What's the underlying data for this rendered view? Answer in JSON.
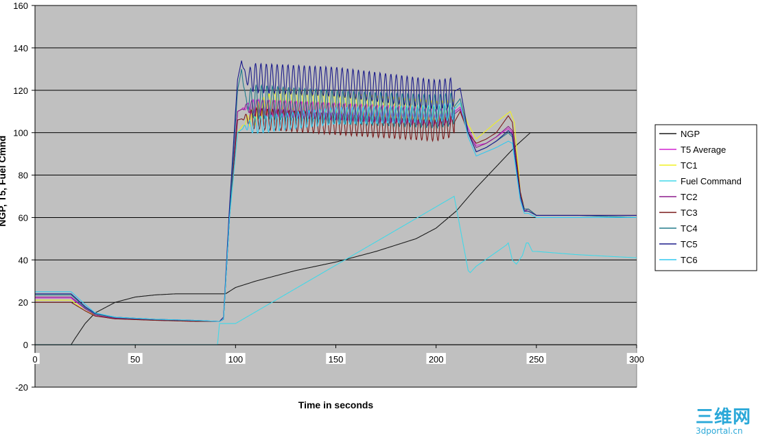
{
  "chart_data": {
    "type": "line",
    "title": "",
    "xlabel": "Time in seconds",
    "ylabel": "NGP, T5, Fuel Cmnd",
    "xlim": [
      0,
      300
    ],
    "ylim": [
      -20,
      160
    ],
    "x_ticks": [
      0,
      50,
      100,
      150,
      200,
      250,
      300
    ],
    "y_ticks": [
      -20,
      0,
      20,
      40,
      60,
      80,
      100,
      120,
      140,
      160
    ],
    "grid": "horizontal",
    "legend_position": "right",
    "plot_background": "#c0c0c0",
    "series": [
      {
        "name": "NGP",
        "color": "#1a1a1a",
        "x": [
          0,
          18,
          20,
          25,
          30,
          40,
          50,
          60,
          70,
          80,
          90,
          95,
          100,
          110,
          130,
          150,
          170,
          190,
          200,
          210,
          220,
          230,
          240,
          247,
          250,
          270,
          300
        ],
        "y": [
          0,
          0,
          3,
          10,
          15,
          20,
          22.5,
          23.5,
          24,
          24,
          24,
          24,
          27,
          30,
          35,
          39,
          44,
          50,
          55,
          63,
          74,
          84,
          94,
          100,
          100,
          100,
          100
        ]
      },
      {
        "name": "T5 Average",
        "color": "#d020d0",
        "x": [
          0,
          18,
          25,
          30,
          40,
          60,
          80,
          92,
          94,
          97,
          101,
          105,
          150,
          200,
          208,
          212,
          216,
          220,
          225,
          230,
          236,
          238,
          242,
          244,
          246,
          250,
          270,
          300
        ],
        "y": [
          22,
          22,
          17,
          14,
          12.5,
          11.7,
          11.2,
          11,
          12,
          60,
          110,
          112,
          110,
          108,
          109,
          112,
          102,
          94,
          95,
          98,
          102,
          100,
          70,
          63,
          64,
          61,
          61,
          61
        ],
        "osc_amp": 4,
        "osc_start": 103,
        "osc_end": 209
      },
      {
        "name": "TC1",
        "color": "#f0f020",
        "x": [
          0,
          18,
          25,
          30,
          40,
          60,
          80,
          92,
          94,
          97,
          101,
          105,
          120,
          150,
          200,
          208,
          212,
          216,
          220,
          225,
          230,
          237,
          239,
          242,
          244,
          246,
          250,
          270,
          300
        ],
        "y": [
          21,
          21,
          16,
          14,
          12.8,
          11.8,
          11.3,
          11,
          12,
          60,
          100,
          105,
          116,
          114,
          110,
          110,
          114,
          104,
          97,
          101,
          105,
          110,
          105,
          72,
          64,
          64,
          61,
          61,
          61
        ],
        "osc_amp": 5,
        "osc_start": 103,
        "osc_end": 209
      },
      {
        "name": "Fuel Command",
        "color": "#40d8e8",
        "x": [
          0,
          91,
          92,
          95,
          100,
          209,
          212,
          215,
          216,
          217,
          220,
          235,
          236,
          238,
          240,
          243,
          245,
          246,
          248,
          250,
          270,
          300
        ],
        "y": [
          0,
          0,
          10,
          10,
          10,
          70,
          55,
          40,
          35,
          34,
          37,
          47,
          48,
          40,
          38,
          42,
          48,
          48,
          44,
          44,
          42.5,
          41
        ]
      },
      {
        "name": "TC2",
        "color": "#8b1a8b",
        "x": [
          0,
          18,
          25,
          30,
          40,
          60,
          80,
          92,
          94,
          97,
          101,
          105,
          150,
          200,
          208,
          212,
          216,
          220,
          225,
          230,
          236,
          238,
          242,
          244,
          246,
          250,
          270,
          300
        ],
        "y": [
          22.5,
          22.5,
          17,
          14,
          12.5,
          11.7,
          11.2,
          11,
          12,
          60,
          110,
          112,
          110,
          107,
          108,
          111,
          100,
          93,
          95,
          98,
          103,
          101,
          70,
          63,
          64,
          61,
          61,
          61
        ],
        "osc_amp": 4,
        "osc_start": 103,
        "osc_end": 209
      },
      {
        "name": "TC3",
        "color": "#7a1a1a",
        "x": [
          0,
          18,
          25,
          30,
          40,
          60,
          80,
          92,
          94,
          97,
          101,
          105,
          150,
          200,
          208,
          212,
          216,
          220,
          225,
          230,
          236,
          238,
          242,
          244,
          246,
          250,
          270,
          300
        ],
        "y": [
          20,
          20,
          16,
          13.5,
          12.2,
          11.5,
          11,
          11,
          12,
          60,
          106,
          107,
          104,
          101,
          103,
          110,
          100,
          95,
          97,
          100,
          108,
          105,
          72,
          64,
          64,
          61,
          61,
          61
        ],
        "osc_amp": 5,
        "osc_start": 103,
        "osc_end": 209
      },
      {
        "name": "TC4",
        "color": "#207a8a",
        "x": [
          0,
          18,
          25,
          30,
          40,
          60,
          80,
          92,
          94,
          97,
          101,
          103,
          105,
          150,
          200,
          208,
          212,
          216,
          220,
          225,
          230,
          236,
          238,
          242,
          244,
          246,
          250,
          270,
          300
        ],
        "y": [
          23.5,
          23.5,
          17.5,
          14.5,
          12.8,
          11.9,
          11.4,
          11,
          12,
          60,
          120,
          130,
          115,
          112,
          110,
          111,
          116,
          100,
          91,
          93,
          96,
          100,
          98,
          70,
          64,
          64,
          61,
          61,
          60
        ],
        "osc_amp": 8,
        "osc_start": 103,
        "osc_end": 209
      },
      {
        "name": "TC5",
        "color": "#1a1a8a",
        "x": [
          0,
          18,
          25,
          30,
          40,
          60,
          80,
          92,
          94,
          97,
          101,
          103,
          105,
          150,
          200,
          208,
          212,
          216,
          220,
          225,
          230,
          236,
          238,
          242,
          244,
          246,
          250,
          270,
          300
        ],
        "y": [
          24,
          24,
          18,
          14.8,
          13,
          12,
          11.5,
          11,
          13,
          65,
          125,
          134,
          126,
          124,
          118,
          119,
          121,
          100,
          91,
          93,
          96,
          101,
          99,
          70,
          63,
          63,
          61,
          61,
          61
        ],
        "osc_amp": 7,
        "osc_start": 103,
        "osc_end": 209
      },
      {
        "name": "TC6",
        "color": "#30c8f0",
        "x": [
          0,
          18,
          25,
          30,
          40,
          60,
          80,
          92,
          94,
          97,
          101,
          105,
          150,
          200,
          208,
          212,
          216,
          220,
          225,
          230,
          236,
          238,
          242,
          244,
          246,
          250,
          270,
          300
        ],
        "y": [
          25,
          25,
          19,
          15,
          13,
          12,
          11.5,
          11,
          12,
          60,
          100,
          103,
          108,
          109,
          110,
          114,
          98,
          89,
          91,
          93,
          96,
          95,
          68,
          62,
          62,
          60,
          60,
          60
        ],
        "osc_amp": 4,
        "osc_start": 103,
        "osc_end": 209
      }
    ]
  },
  "watermark": {
    "main": "三维网",
    "sub": "3dportal.cn"
  }
}
